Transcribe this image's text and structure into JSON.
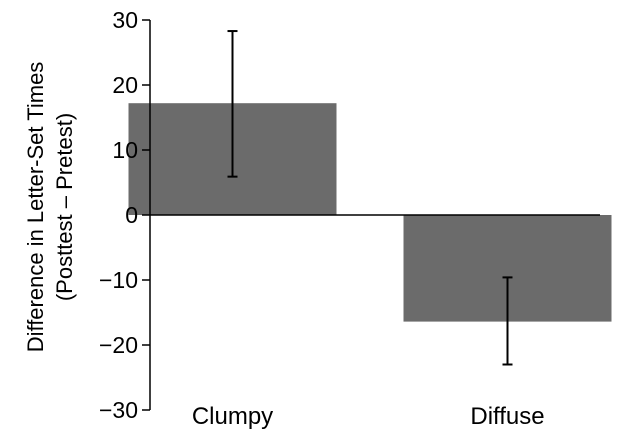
{
  "chart_data": {
    "type": "bar",
    "title": "",
    "xlabel": "",
    "ylabel": "Difference in Letter-Set Times",
    "ylabel_line2": "(Posttest – Pretest)",
    "categories": [
      "Clumpy",
      "Diffuse"
    ],
    "values": [
      17.2,
      -16.4
    ],
    "error_low": [
      5.9,
      -23.0
    ],
    "error_high": [
      28.3,
      -9.6
    ],
    "ylim": [
      -30,
      30
    ],
    "yticks": [
      30,
      20,
      10,
      0,
      -10,
      -20,
      -30
    ],
    "ytick_labels": [
      "30",
      "20",
      "10",
      "0",
      "−10",
      "−20",
      "−30"
    ],
    "grid": false,
    "legend": "none",
    "bar_color": "#6b6b6b"
  }
}
